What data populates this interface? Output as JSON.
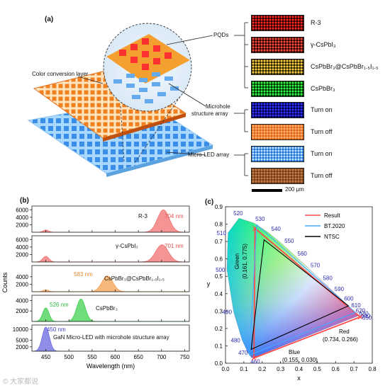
{
  "panel_a": {
    "label": "(a)",
    "layer_labels": {
      "color_conversion": "Color conversion layer",
      "pqds": "PQDs",
      "microhole_line1": "Microhole",
      "microhole_line2": "structure array",
      "microled": "Micro-LED array"
    },
    "swatches": [
      {
        "label": "R-3",
        "color": "#ff2a2a",
        "bg": "#2a0000"
      },
      {
        "label": "γ-CsPbI₃",
        "color": "#ff4a3a",
        "bg": "#2a0505"
      },
      {
        "label": "CsPbBr₃@CsPbBr₁.₅I₁.₅",
        "color": "#ffd24a",
        "bg": "#2a2000"
      },
      {
        "label": "CsPbBr₃",
        "color": "#33ff44",
        "bg": "#002a00"
      },
      {
        "label": "Turn on",
        "color": "#3333ff",
        "bg": "#00004a"
      },
      {
        "label": "Turn off",
        "color": "#ffb070",
        "bg": "#e0651a"
      },
      {
        "label": "Turn on",
        "color": "#bfe8ff",
        "bg": "#2070d8"
      },
      {
        "label": "Turn off",
        "color": "#c08050",
        "bg": "#7a3a12"
      }
    ],
    "scale_bar": "200 μm"
  },
  "panel_b": {
    "label": "(b)",
    "xlabel": "Wavelength (nm)",
    "ylabel": "Counts",
    "xticks": [
      "450",
      "500",
      "550",
      "600",
      "650",
      "700",
      "750"
    ]
  },
  "panel_c": {
    "label": "(c)",
    "xlabel": "x",
    "ylabel": "y",
    "green_label_1": "Green",
    "green_label_2": "(0.161, 0.775)",
    "red_label_1": "Red",
    "red_label_2": "(0.734, 0.266)",
    "blue_label_1": "Blue",
    "blue_label_2": "(0.155, 0.030)",
    "legend": [
      {
        "label": "Result",
        "color": "#ff4a4a"
      },
      {
        "label": "BT.2020",
        "color": "#44aaff"
      },
      {
        "label": "NTSC",
        "color": "#000000"
      }
    ]
  },
  "watermark": "© 大家都说",
  "chart_data": [
    {
      "type": "line",
      "title": "",
      "xlabel": "Wavelength (nm)",
      "ylabel": "Counts",
      "xlim": [
        420,
        760
      ],
      "series": [
        {
          "name": "R-3",
          "peak_label": "704 nm",
          "color": "#f07070",
          "ylim": [
            0,
            7000
          ],
          "yticks": [
            2000,
            4000,
            6000
          ],
          "peaks": [
            {
              "x": 450,
              "y": 600,
              "fwhm": 14
            },
            {
              "x": 704,
              "y": 6000,
              "fwhm": 30
            }
          ]
        },
        {
          "name": "γ-CsPbI₃",
          "peak_label": "701 nm",
          "color": "#f07070",
          "ylim": [
            0,
            7000
          ],
          "yticks": [
            2000,
            4000,
            6000
          ],
          "peaks": [
            {
              "x": 450,
              "y": 1500,
              "fwhm": 16
            },
            {
              "x": 701,
              "y": 4600,
              "fwhm": 32
            }
          ]
        },
        {
          "name": "CsPbBr₃@CsPbBr₁.₅I₁.₅",
          "peak_label": "583 nm",
          "color": "#f5a050",
          "ylim": [
            0,
            7000
          ],
          "yticks": [
            2000,
            4000
          ],
          "peaks": [
            {
              "x": 450,
              "y": 500,
              "fwhm": 14
            },
            {
              "x": 583,
              "y": 4200,
              "fwhm": 28
            }
          ]
        },
        {
          "name": "CsPbBr₃",
          "peak_label": "526 nm",
          "color": "#40d050",
          "ylim": [
            0,
            5000
          ],
          "yticks": [
            2000,
            4000
          ],
          "peaks": [
            {
              "x": 450,
              "y": 2600,
              "fwhm": 16
            },
            {
              "x": 526,
              "y": 4300,
              "fwhm": 22
            }
          ]
        },
        {
          "name": "GaN Micro-LED with microhole structure array",
          "peak_label": "450 nm",
          "color": "#6868e0",
          "ylim": [
            0,
            12000
          ],
          "yticks": [
            2000,
            5000,
            10000
          ],
          "peaks": [
            {
              "x": 450,
              "y": 11000,
              "fwhm": 18
            }
          ]
        }
      ]
    },
    {
      "type": "scatter",
      "title": "",
      "xlabel": "x",
      "ylabel": "y",
      "xlim": [
        0.0,
        0.8
      ],
      "ylim": [
        0.0,
        0.9
      ],
      "xticks": [
        0.0,
        0.1,
        0.2,
        0.3,
        0.4,
        0.5,
        0.6,
        0.7,
        0.8
      ],
      "yticks": [
        0.0,
        0.1,
        0.2,
        0.3,
        0.4,
        0.5,
        0.6,
        0.7,
        0.8,
        0.9
      ],
      "locus_labels": [
        {
          "nm": "460",
          "x": 0.144,
          "y": 0.03
        },
        {
          "nm": "470",
          "x": 0.124,
          "y": 0.058
        },
        {
          "nm": "480",
          "x": 0.091,
          "y": 0.133
        },
        {
          "nm": "490",
          "x": 0.045,
          "y": 0.295
        },
        {
          "nm": "500",
          "x": 0.008,
          "y": 0.538
        },
        {
          "nm": "510",
          "x": 0.014,
          "y": 0.75
        },
        {
          "nm": "520",
          "x": 0.074,
          "y": 0.834
        },
        {
          "nm": "530",
          "x": 0.155,
          "y": 0.806
        },
        {
          "nm": "540",
          "x": 0.23,
          "y": 0.754
        },
        {
          "nm": "550",
          "x": 0.302,
          "y": 0.692
        },
        {
          "nm": "560",
          "x": 0.373,
          "y": 0.624
        },
        {
          "nm": "570",
          "x": 0.444,
          "y": 0.555
        },
        {
          "nm": "580",
          "x": 0.512,
          "y": 0.487
        },
        {
          "nm": "590",
          "x": 0.575,
          "y": 0.424
        },
        {
          "nm": "600",
          "x": 0.627,
          "y": 0.373
        },
        {
          "nm": "610",
          "x": 0.666,
          "y": 0.334
        },
        {
          "nm": "620",
          "x": 0.691,
          "y": 0.308
        },
        {
          "nm": "630",
          "x": 0.708,
          "y": 0.292
        },
        {
          "nm": "640",
          "x": 0.719,
          "y": 0.281
        },
        {
          "nm": "650",
          "x": 0.726,
          "y": 0.274
        }
      ],
      "series": [
        {
          "name": "Result",
          "points": [
            [
              0.161,
              0.775
            ],
            [
              0.734,
              0.266
            ],
            [
              0.155,
              0.03
            ]
          ]
        },
        {
          "name": "BT.2020",
          "points": [
            [
              0.17,
              0.797
            ],
            [
              0.708,
              0.292
            ],
            [
              0.131,
              0.046
            ]
          ]
        },
        {
          "name": "NTSC",
          "points": [
            [
              0.21,
              0.71
            ],
            [
              0.67,
              0.33
            ],
            [
              0.14,
              0.08
            ]
          ]
        }
      ]
    }
  ]
}
